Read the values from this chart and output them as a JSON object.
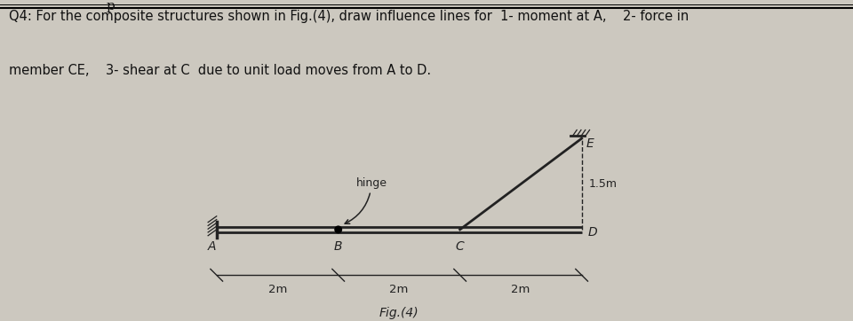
{
  "bg_color": "#ccc8bf",
  "text_color": "#111111",
  "title_line1": "Q4: For the composite structures shown in Fig.(4), draw influence lines for  1- moment at A,    2- force in",
  "title_line2": "member CE,    3- shear at C  due to unit load moves from A to D.",
  "fig_caption": "Fig.(4)",
  "beam_color": "#222222",
  "xlim": [
    -0.3,
    7.2
  ],
  "ylim": [
    -1.4,
    2.3
  ],
  "label_fontsize": 10,
  "dim_fontsize": 9.5,
  "title_fontsize": 10.5
}
